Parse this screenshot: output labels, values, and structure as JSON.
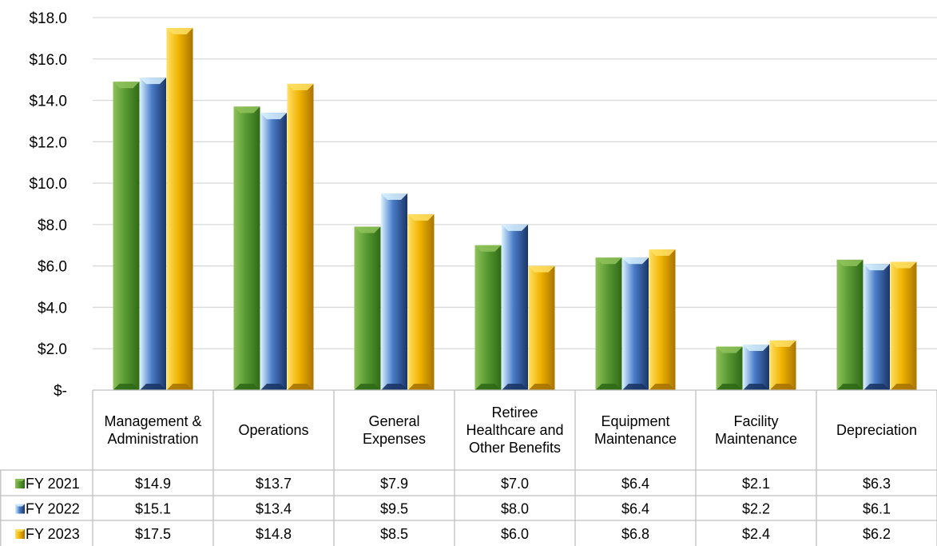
{
  "chart_data": {
    "type": "bar",
    "title": "",
    "xlabel": "",
    "ylabel": "",
    "ylim": [
      0,
      18
    ],
    "ytick_step": 2,
    "ytick_labels": [
      "$-",
      "$2.0",
      "$4.0",
      "$6.0",
      "$8.0",
      "$10.0",
      "$12.0",
      "$14.0",
      "$16.0",
      "$18.0"
    ],
    "grid": true,
    "legend_placement": "data-table-left",
    "categories": [
      [
        "Management &",
        "Administration"
      ],
      [
        "Operations"
      ],
      [
        "General",
        "Expenses"
      ],
      [
        "Retiree",
        "Healthcare and",
        "Other Benefits"
      ],
      [
        "Equipment",
        "Maintenance"
      ],
      [
        "Facility",
        "Maintenance"
      ],
      [
        "Depreciation"
      ]
    ],
    "series": [
      {
        "name": "FY 2021",
        "values": [
          14.9,
          13.7,
          7.9,
          7.0,
          6.4,
          2.1,
          6.3
        ],
        "labels": [
          "$14.9",
          "$13.7",
          "$7.9",
          "$7.0",
          "$6.4",
          "$2.1",
          "$6.3"
        ],
        "color_light": "#8fc25a",
        "color_mid": "#5a9a33",
        "color_dark": "#2f6a17"
      },
      {
        "name": "FY 2022",
        "values": [
          15.1,
          13.4,
          9.5,
          8.0,
          6.4,
          2.2,
          6.1
        ],
        "labels": [
          "$15.1",
          "$13.4",
          "$9.5",
          "$8.0",
          "$6.4",
          "$2.2",
          "$6.1"
        ],
        "color_light": "#d9f2ff",
        "color_mid": "#4a7cc9",
        "color_dark": "#1a3566"
      },
      {
        "name": "FY 2023",
        "values": [
          17.5,
          14.8,
          8.5,
          6.0,
          6.8,
          2.4,
          6.2
        ],
        "labels": [
          "$17.5",
          "$14.8",
          "$8.5",
          "$6.0",
          "$6.8",
          "$2.4",
          "$6.2"
        ],
        "color_light": "#ffe066",
        "color_mid": "#f0b400",
        "color_dark": "#a87400"
      }
    ]
  }
}
